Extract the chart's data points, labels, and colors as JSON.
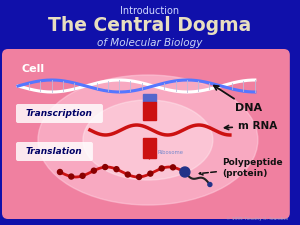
{
  "title_line1": "Introduction",
  "title_line2": "The Central Dogma",
  "title_line3": "of Molecular Biology",
  "bg_color": "#1010aa",
  "cell_box_color": "#f080a0",
  "cell_label": "Cell",
  "label_transcription": "Transcription",
  "label_translation": "Translation",
  "label_dna": "DNA",
  "label_mrna": "m RNA",
  "label_ribosome": "Ribosome",
  "label_polypeptide": "Polypeptide\n(protein)",
  "title1_color": "#d0d8ff",
  "title2_color": "#e8dfc0",
  "title3_color": "#c8d4f8",
  "cell_label_color": "#ffffff",
  "dna_blue": "#5577ff",
  "dna_white": "#ffffff",
  "mrna_color": "#cc1111",
  "copyright": "© 1999 Timothy G. Standish"
}
